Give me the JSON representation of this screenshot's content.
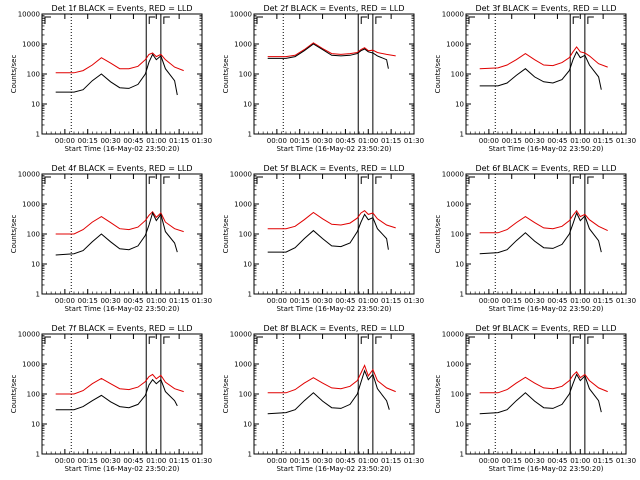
{
  "time_ticks": [
    "00:00",
    "00:15",
    "00:30",
    "00:45",
    "01:00",
    "01:15",
    "01:30"
  ],
  "y_ticks": [
    "1",
    "10",
    "100",
    "1000",
    "10000"
  ],
  "xlabel": "Start Time (16-May-02 23:50:20)",
  "ylabel": "Counts/sec",
  "colors": {
    "events": "#000000",
    "lld": "#e00000"
  },
  "chart_data": [
    {
      "type": "line",
      "title": "Det 1f BLACK = Events, RED = LLD",
      "markers": [
        0.07,
        0.89,
        1.05
      ],
      "series": [
        {
          "key": "lld",
          "x": [
            -0.1,
            0.1,
            0.2,
            0.3,
            0.4,
            0.5,
            0.6,
            0.7,
            0.8,
            0.88,
            0.92,
            0.96,
            1.0,
            1.05,
            1.1,
            1.2,
            1.3
          ],
          "values": [
            110,
            110,
            130,
            200,
            350,
            230,
            150,
            150,
            180,
            300,
            450,
            500,
            380,
            450,
            300,
            170,
            130
          ]
        },
        {
          "key": "events",
          "x": [
            -0.1,
            0.1,
            0.2,
            0.3,
            0.4,
            0.5,
            0.6,
            0.7,
            0.8,
            0.88,
            0.92,
            0.96,
            1.0,
            1.05,
            1.1,
            1.2,
            1.23
          ],
          "values": [
            25,
            25,
            30,
            60,
            100,
            55,
            35,
            33,
            45,
            100,
            250,
            450,
            300,
            400,
            150,
            60,
            20
          ]
        }
      ]
    },
    {
      "type": "line",
      "title": "Det 2f BLACK = Events, RED = LLD",
      "markers": [
        0.07,
        0.89,
        1.05
      ],
      "series": [
        {
          "key": "lld",
          "x": [
            -0.1,
            0.1,
            0.2,
            0.3,
            0.4,
            0.5,
            0.6,
            0.7,
            0.8,
            0.88,
            0.92,
            0.96,
            1.0,
            1.05,
            1.1,
            1.2,
            1.3
          ],
          "values": [
            380,
            380,
            420,
            650,
            1100,
            700,
            480,
            450,
            480,
            520,
            650,
            750,
            600,
            620,
            520,
            450,
            400
          ]
        },
        {
          "key": "events",
          "x": [
            -0.1,
            0.1,
            0.2,
            0.3,
            0.4,
            0.5,
            0.6,
            0.7,
            0.8,
            0.88,
            0.92,
            0.96,
            1.0,
            1.05,
            1.1,
            1.2,
            1.22
          ],
          "values": [
            330,
            330,
            380,
            600,
            1000,
            650,
            420,
            400,
            420,
            480,
            600,
            680,
            550,
            500,
            400,
            300,
            150
          ]
        }
      ]
    },
    {
      "type": "line",
      "title": "Det 3f BLACK = Events, RED = LLD",
      "markers": [
        0.07,
        0.89,
        1.05
      ],
      "series": [
        {
          "key": "lld",
          "x": [
            -0.1,
            0.1,
            0.2,
            0.3,
            0.4,
            0.5,
            0.6,
            0.7,
            0.8,
            0.88,
            0.92,
            0.96,
            1.0,
            1.05,
            1.1,
            1.2,
            1.3
          ],
          "values": [
            150,
            160,
            200,
            300,
            480,
            300,
            200,
            190,
            240,
            350,
            550,
            800,
            550,
            500,
            400,
            220,
            170
          ]
        },
        {
          "key": "events",
          "x": [
            -0.1,
            0.1,
            0.2,
            0.3,
            0.4,
            0.5,
            0.6,
            0.7,
            0.8,
            0.88,
            0.92,
            0.96,
            1.0,
            1.05,
            1.1,
            1.2,
            1.23
          ],
          "values": [
            40,
            40,
            50,
            90,
            150,
            80,
            55,
            50,
            65,
            130,
            300,
            550,
            350,
            420,
            200,
            80,
            30
          ]
        }
      ]
    },
    {
      "type": "line",
      "title": "Det 4f BLACK = Events, RED = LLD",
      "markers": [
        0.07,
        0.89,
        1.05
      ],
      "series": [
        {
          "key": "lld",
          "x": [
            -0.1,
            0.1,
            0.2,
            0.3,
            0.4,
            0.5,
            0.6,
            0.7,
            0.8,
            0.88,
            0.92,
            0.96,
            1.0,
            1.05,
            1.1,
            1.2,
            1.3
          ],
          "values": [
            100,
            100,
            140,
            250,
            380,
            240,
            150,
            140,
            170,
            280,
            420,
            550,
            360,
            500,
            250,
            150,
            120
          ]
        },
        {
          "key": "events",
          "x": [
            -0.1,
            0.1,
            0.2,
            0.3,
            0.4,
            0.5,
            0.6,
            0.7,
            0.8,
            0.88,
            0.92,
            0.96,
            1.0,
            1.05,
            1.1,
            1.2,
            1.23
          ],
          "values": [
            20,
            22,
            28,
            55,
            100,
            55,
            32,
            30,
            40,
            90,
            200,
            500,
            280,
            450,
            120,
            50,
            25
          ]
        }
      ]
    },
    {
      "type": "line",
      "title": "Det 5f BLACK = Events, RED = LLD",
      "markers": [
        0.07,
        0.89,
        1.05
      ],
      "series": [
        {
          "key": "lld",
          "x": [
            -0.1,
            0.1,
            0.2,
            0.3,
            0.4,
            0.5,
            0.6,
            0.7,
            0.8,
            0.88,
            0.92,
            0.96,
            1.0,
            1.05,
            1.1,
            1.2,
            1.3
          ],
          "values": [
            150,
            150,
            180,
            300,
            520,
            320,
            210,
            200,
            230,
            340,
            500,
            600,
            450,
            500,
            320,
            200,
            160
          ]
        },
        {
          "key": "events",
          "x": [
            -0.1,
            0.1,
            0.2,
            0.3,
            0.4,
            0.5,
            0.6,
            0.7,
            0.8,
            0.88,
            0.92,
            0.96,
            1.0,
            1.05,
            1.1,
            1.2,
            1.22
          ],
          "values": [
            25,
            25,
            35,
            70,
            130,
            70,
            40,
            38,
            50,
            120,
            250,
            450,
            300,
            350,
            150,
            70,
            30
          ]
        }
      ]
    },
    {
      "type": "line",
      "title": "Det 6f BLACK = Events, RED = LLD",
      "markers": [
        0.07,
        0.89,
        1.05
      ],
      "series": [
        {
          "key": "lld",
          "x": [
            -0.1,
            0.1,
            0.2,
            0.3,
            0.4,
            0.5,
            0.6,
            0.7,
            0.8,
            0.88,
            0.92,
            0.96,
            1.0,
            1.05,
            1.1,
            1.2,
            1.3
          ],
          "values": [
            110,
            110,
            140,
            240,
            380,
            240,
            160,
            150,
            180,
            280,
            420,
            600,
            380,
            450,
            300,
            180,
            130
          ]
        },
        {
          "key": "events",
          "x": [
            -0.1,
            0.1,
            0.2,
            0.3,
            0.4,
            0.5,
            0.6,
            0.7,
            0.8,
            0.88,
            0.92,
            0.96,
            1.0,
            1.05,
            1.1,
            1.2,
            1.23
          ],
          "values": [
            22,
            24,
            30,
            60,
            110,
            58,
            35,
            33,
            45,
            100,
            220,
            500,
            280,
            400,
            150,
            60,
            25
          ]
        }
      ]
    },
    {
      "type": "line",
      "title": "Det 7f BLACK = Events, RED = LLD",
      "markers": [
        0.07,
        0.89,
        1.05
      ],
      "series": [
        {
          "key": "lld",
          "x": [
            -0.1,
            0.1,
            0.2,
            0.3,
            0.4,
            0.5,
            0.6,
            0.7,
            0.8,
            0.88,
            0.92,
            0.96,
            1.0,
            1.05,
            1.1,
            1.2,
            1.3
          ],
          "values": [
            100,
            100,
            130,
            220,
            330,
            220,
            150,
            140,
            170,
            260,
            380,
            450,
            320,
            420,
            250,
            150,
            120
          ]
        },
        {
          "key": "events",
          "x": [
            -0.1,
            0.1,
            0.2,
            0.3,
            0.4,
            0.5,
            0.6,
            0.7,
            0.8,
            0.88,
            0.92,
            0.96,
            1.0,
            1.05,
            1.1,
            1.2,
            1.23
          ],
          "values": [
            30,
            30,
            38,
            60,
            90,
            55,
            38,
            35,
            45,
            90,
            200,
            300,
            220,
            300,
            120,
            60,
            40
          ]
        }
      ]
    },
    {
      "type": "line",
      "title": "Det 8f BLACK = Events, RED = LLD",
      "markers": [
        0.07,
        0.89,
        1.05
      ],
      "series": [
        {
          "key": "lld",
          "x": [
            -0.1,
            0.1,
            0.2,
            0.3,
            0.4,
            0.5,
            0.6,
            0.7,
            0.8,
            0.88,
            0.92,
            0.96,
            1.0,
            1.05,
            1.1,
            1.2,
            1.3
          ],
          "values": [
            110,
            110,
            140,
            230,
            350,
            230,
            160,
            150,
            180,
            280,
            500,
            900,
            400,
            650,
            280,
            160,
            120
          ]
        },
        {
          "key": "events",
          "x": [
            -0.1,
            0.1,
            0.2,
            0.3,
            0.4,
            0.5,
            0.6,
            0.7,
            0.8,
            0.88,
            0.92,
            0.96,
            1.0,
            1.05,
            1.1,
            1.2,
            1.23
          ],
          "values": [
            22,
            24,
            30,
            60,
            110,
            58,
            35,
            33,
            45,
            100,
            250,
            600,
            300,
            450,
            150,
            60,
            30
          ]
        }
      ]
    },
    {
      "type": "line",
      "title": "Det 9f BLACK = Events, RED = LLD",
      "markers": [
        0.07,
        0.89,
        1.05
      ],
      "series": [
        {
          "key": "lld",
          "x": [
            -0.1,
            0.1,
            0.2,
            0.3,
            0.4,
            0.5,
            0.6,
            0.7,
            0.8,
            0.88,
            0.92,
            0.96,
            1.0,
            1.05,
            1.1,
            1.2,
            1.3
          ],
          "values": [
            110,
            110,
            140,
            230,
            360,
            230,
            160,
            150,
            180,
            280,
            420,
            550,
            350,
            450,
            280,
            160,
            120
          ]
        },
        {
          "key": "events",
          "x": [
            -0.1,
            0.1,
            0.2,
            0.3,
            0.4,
            0.5,
            0.6,
            0.7,
            0.8,
            0.88,
            0.92,
            0.96,
            1.0,
            1.05,
            1.1,
            1.2,
            1.23
          ],
          "values": [
            22,
            24,
            30,
            60,
            110,
            58,
            35,
            33,
            45,
            100,
            220,
            450,
            280,
            400,
            150,
            60,
            25
          ]
        }
      ]
    }
  ]
}
